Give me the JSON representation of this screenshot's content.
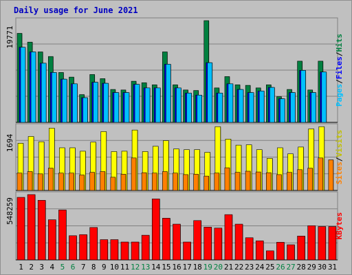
{
  "title": "Daily usage for June 2021",
  "colors": {
    "hits": "#008040",
    "files": "#0000ff",
    "pages": "#00c0ff",
    "visits": "#ffff00",
    "sites": "#ff8000",
    "kbytes": "#ff0000",
    "weekend_label": "#008040",
    "weekday_label": "#000000"
  },
  "chart_data": [
    {
      "type": "bar",
      "panel": "hits-files-pages",
      "categories": [
        "1",
        "2",
        "3",
        "4",
        "5",
        "6",
        "7",
        "8",
        "9",
        "10",
        "11",
        "12",
        "13",
        "14",
        "15",
        "16",
        "17",
        "18",
        "19",
        "20",
        "21",
        "22",
        "23",
        "24",
        "25",
        "26",
        "27",
        "28",
        "29",
        "30",
        "31"
      ],
      "weekend_days": [
        "5",
        "6",
        "12",
        "13",
        "19",
        "20",
        "26",
        "27"
      ],
      "ymax_label": "19771",
      "ylim": [
        0,
        19771
      ],
      "series": [
        {
          "name": "Hits",
          "values": [
            17300,
            15600,
            13700,
            12800,
            9700,
            8800,
            5400,
            9300,
            8500,
            6400,
            6300,
            8000,
            7700,
            7300,
            13700,
            7300,
            6300,
            6200,
            19771,
            6700,
            8900,
            7300,
            7200,
            6700,
            7300,
            5000,
            6400,
            11900,
            6300,
            11900,
            0
          ]
        },
        {
          "name": "Files",
          "values": [
            14600,
            13700,
            11500,
            9700,
            8400,
            7500,
            4800,
            7800,
            7600,
            5800,
            5800,
            7400,
            6700,
            6700,
            11300,
            6700,
            5700,
            5300,
            11600,
            5700,
            7500,
            6400,
            5800,
            6100,
            6800,
            4600,
            5800,
            10100,
            5800,
            9800,
            0
          ]
        },
        {
          "name": "Pages",
          "values": [
            14600,
            13700,
            11500,
            9700,
            8400,
            7500,
            4800,
            7800,
            7600,
            5800,
            5800,
            7400,
            6700,
            6700,
            11300,
            6700,
            5700,
            5300,
            11600,
            5700,
            7500,
            6400,
            5800,
            6100,
            6800,
            4600,
            5800,
            10100,
            5800,
            9800,
            0
          ]
        }
      ],
      "legend": [
        "Pages",
        "/",
        "Files",
        "/",
        "Hits"
      ]
    },
    {
      "type": "bar",
      "panel": "visits-sites",
      "categories": [
        "1",
        "2",
        "3",
        "4",
        "5",
        "6",
        "7",
        "8",
        "9",
        "10",
        "11",
        "12",
        "13",
        "14",
        "15",
        "16",
        "17",
        "18",
        "19",
        "20",
        "21",
        "22",
        "23",
        "24",
        "25",
        "26",
        "27",
        "28",
        "29",
        "30",
        "31"
      ],
      "ymax_label": "1694",
      "ylim": [
        0,
        1694
      ],
      "series": [
        {
          "name": "Visits",
          "values": [
            1250,
            1430,
            1290,
            1650,
            1130,
            1130,
            1040,
            1280,
            1560,
            1030,
            1040,
            1600,
            1030,
            1170,
            1320,
            1100,
            1080,
            1080,
            1010,
            1690,
            1360,
            1200,
            1210,
            1080,
            850,
            1130,
            970,
            1150,
            1630,
            1690,
            0
          ]
        },
        {
          "name": "Sites",
          "values": [
            460,
            500,
            440,
            590,
            460,
            460,
            410,
            480,
            500,
            350,
            430,
            860,
            470,
            460,
            500,
            460,
            420,
            430,
            380,
            460,
            600,
            480,
            510,
            490,
            470,
            420,
            480,
            550,
            590,
            860,
            810
          ]
        }
      ],
      "legend": [
        "Sites",
        "/",
        "Visits"
      ]
    },
    {
      "type": "bar",
      "panel": "kbytes",
      "categories": [
        "1",
        "2",
        "3",
        "4",
        "5",
        "6",
        "7",
        "8",
        "9",
        "10",
        "11",
        "12",
        "13",
        "14",
        "15",
        "16",
        "17",
        "18",
        "19",
        "20",
        "21",
        "22",
        "23",
        "24",
        "25",
        "26",
        "27",
        "28",
        "29",
        "30",
        "31"
      ],
      "ymax_label": "548259",
      "ylim": [
        0,
        548259
      ],
      "series": [
        {
          "name": "KBytes",
          "values": [
            525000,
            548259,
            500000,
            337000,
            419000,
            203000,
            212000,
            272000,
            170000,
            170000,
            150000,
            150000,
            207000,
            512000,
            350000,
            300000,
            150000,
            330000,
            275000,
            267000,
            380000,
            300000,
            186000,
            160000,
            76000,
            148000,
            127000,
            200000,
            287000,
            280000,
            280000
          ]
        }
      ],
      "legend": [
        "KBytes"
      ]
    }
  ]
}
